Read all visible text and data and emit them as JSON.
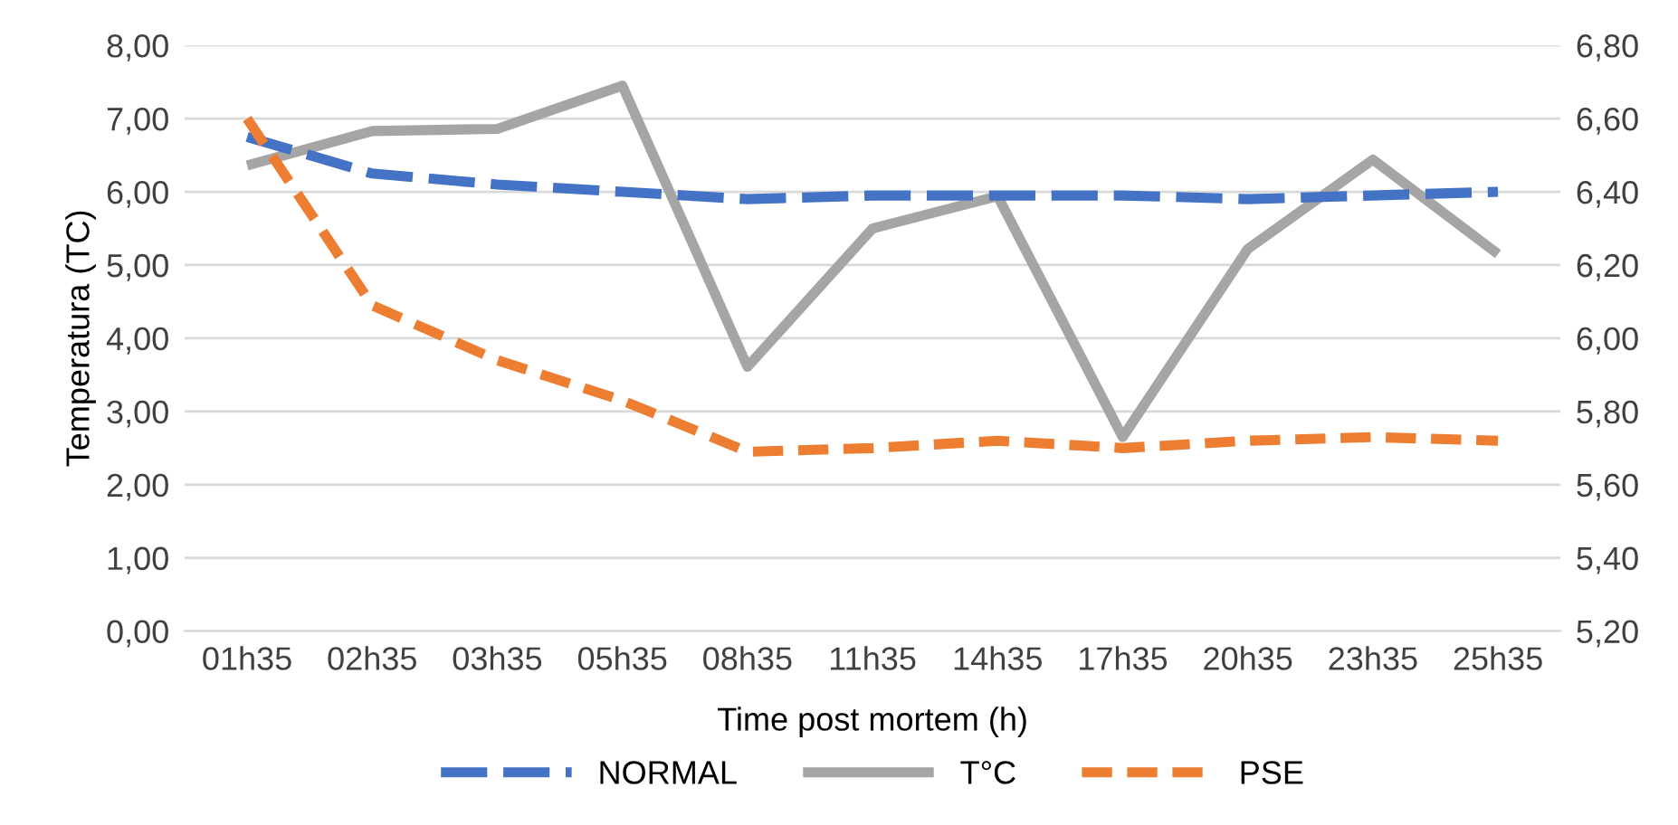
{
  "chart_data": {
    "type": "line",
    "xlabel": "Time post mortem (h)",
    "ylabel": "Temperatura (TC)",
    "categories": [
      "01h35",
      "02h35",
      "03h35",
      "05h35",
      "08h35",
      "11h35",
      "14h35",
      "17h35",
      "20h35",
      "23h35",
      "25h35"
    ],
    "series": [
      {
        "name": "NORMAL",
        "color": "#4472c4",
        "axis": "y2",
        "line_style": "dashed",
        "values": [
          6.55,
          6.45,
          6.42,
          6.4,
          6.38,
          6.39,
          6.39,
          6.39,
          6.38,
          6.39,
          6.4
        ]
      },
      {
        "name": "T°C",
        "color": "#a5a5a5",
        "line_style": "solid",
        "values": [
          6.36,
          6.83,
          6.86,
          7.45,
          3.61,
          5.5,
          5.94,
          2.65,
          5.22,
          6.44,
          5.15
        ]
      },
      {
        "name": "PSE",
        "color": "#ed7d31",
        "axis": "y2",
        "line_style": "dotted",
        "values": [
          6.6,
          6.09,
          5.94,
          5.83,
          5.69,
          5.7,
          5.72,
          5.7,
          5.72,
          5.73,
          5.72
        ]
      }
    ],
    "ylim": [
      0,
      8
    ],
    "yticks": [
      {
        "value": 0,
        "label": "0,00"
      },
      {
        "value": 1,
        "label": "1,00"
      },
      {
        "value": 2,
        "label": "2,00"
      },
      {
        "value": 3,
        "label": "3,00"
      },
      {
        "value": 4,
        "label": "4,00"
      },
      {
        "value": 5,
        "label": "5,00"
      },
      {
        "value": 6,
        "label": "6,00"
      },
      {
        "value": 7,
        "label": "7,00"
      },
      {
        "value": 8,
        "label": "8,00"
      }
    ],
    "y2lim": [
      5.2,
      6.8
    ],
    "y2ticks": [
      {
        "value": 5.2,
        "label": "5,20"
      },
      {
        "value": 5.4,
        "label": "5,40"
      },
      {
        "value": 5.6,
        "label": "5,60"
      },
      {
        "value": 5.8,
        "label": "5,80"
      },
      {
        "value": 6.0,
        "label": "6,00"
      },
      {
        "value": 6.2,
        "label": "6,20"
      },
      {
        "value": 6.4,
        "label": "6,40"
      },
      {
        "value": 6.6,
        "label": "6,60"
      },
      {
        "value": 6.8,
        "label": "6,80"
      }
    ],
    "grid": "y",
    "legend": "bottom",
    "marker": "none"
  }
}
